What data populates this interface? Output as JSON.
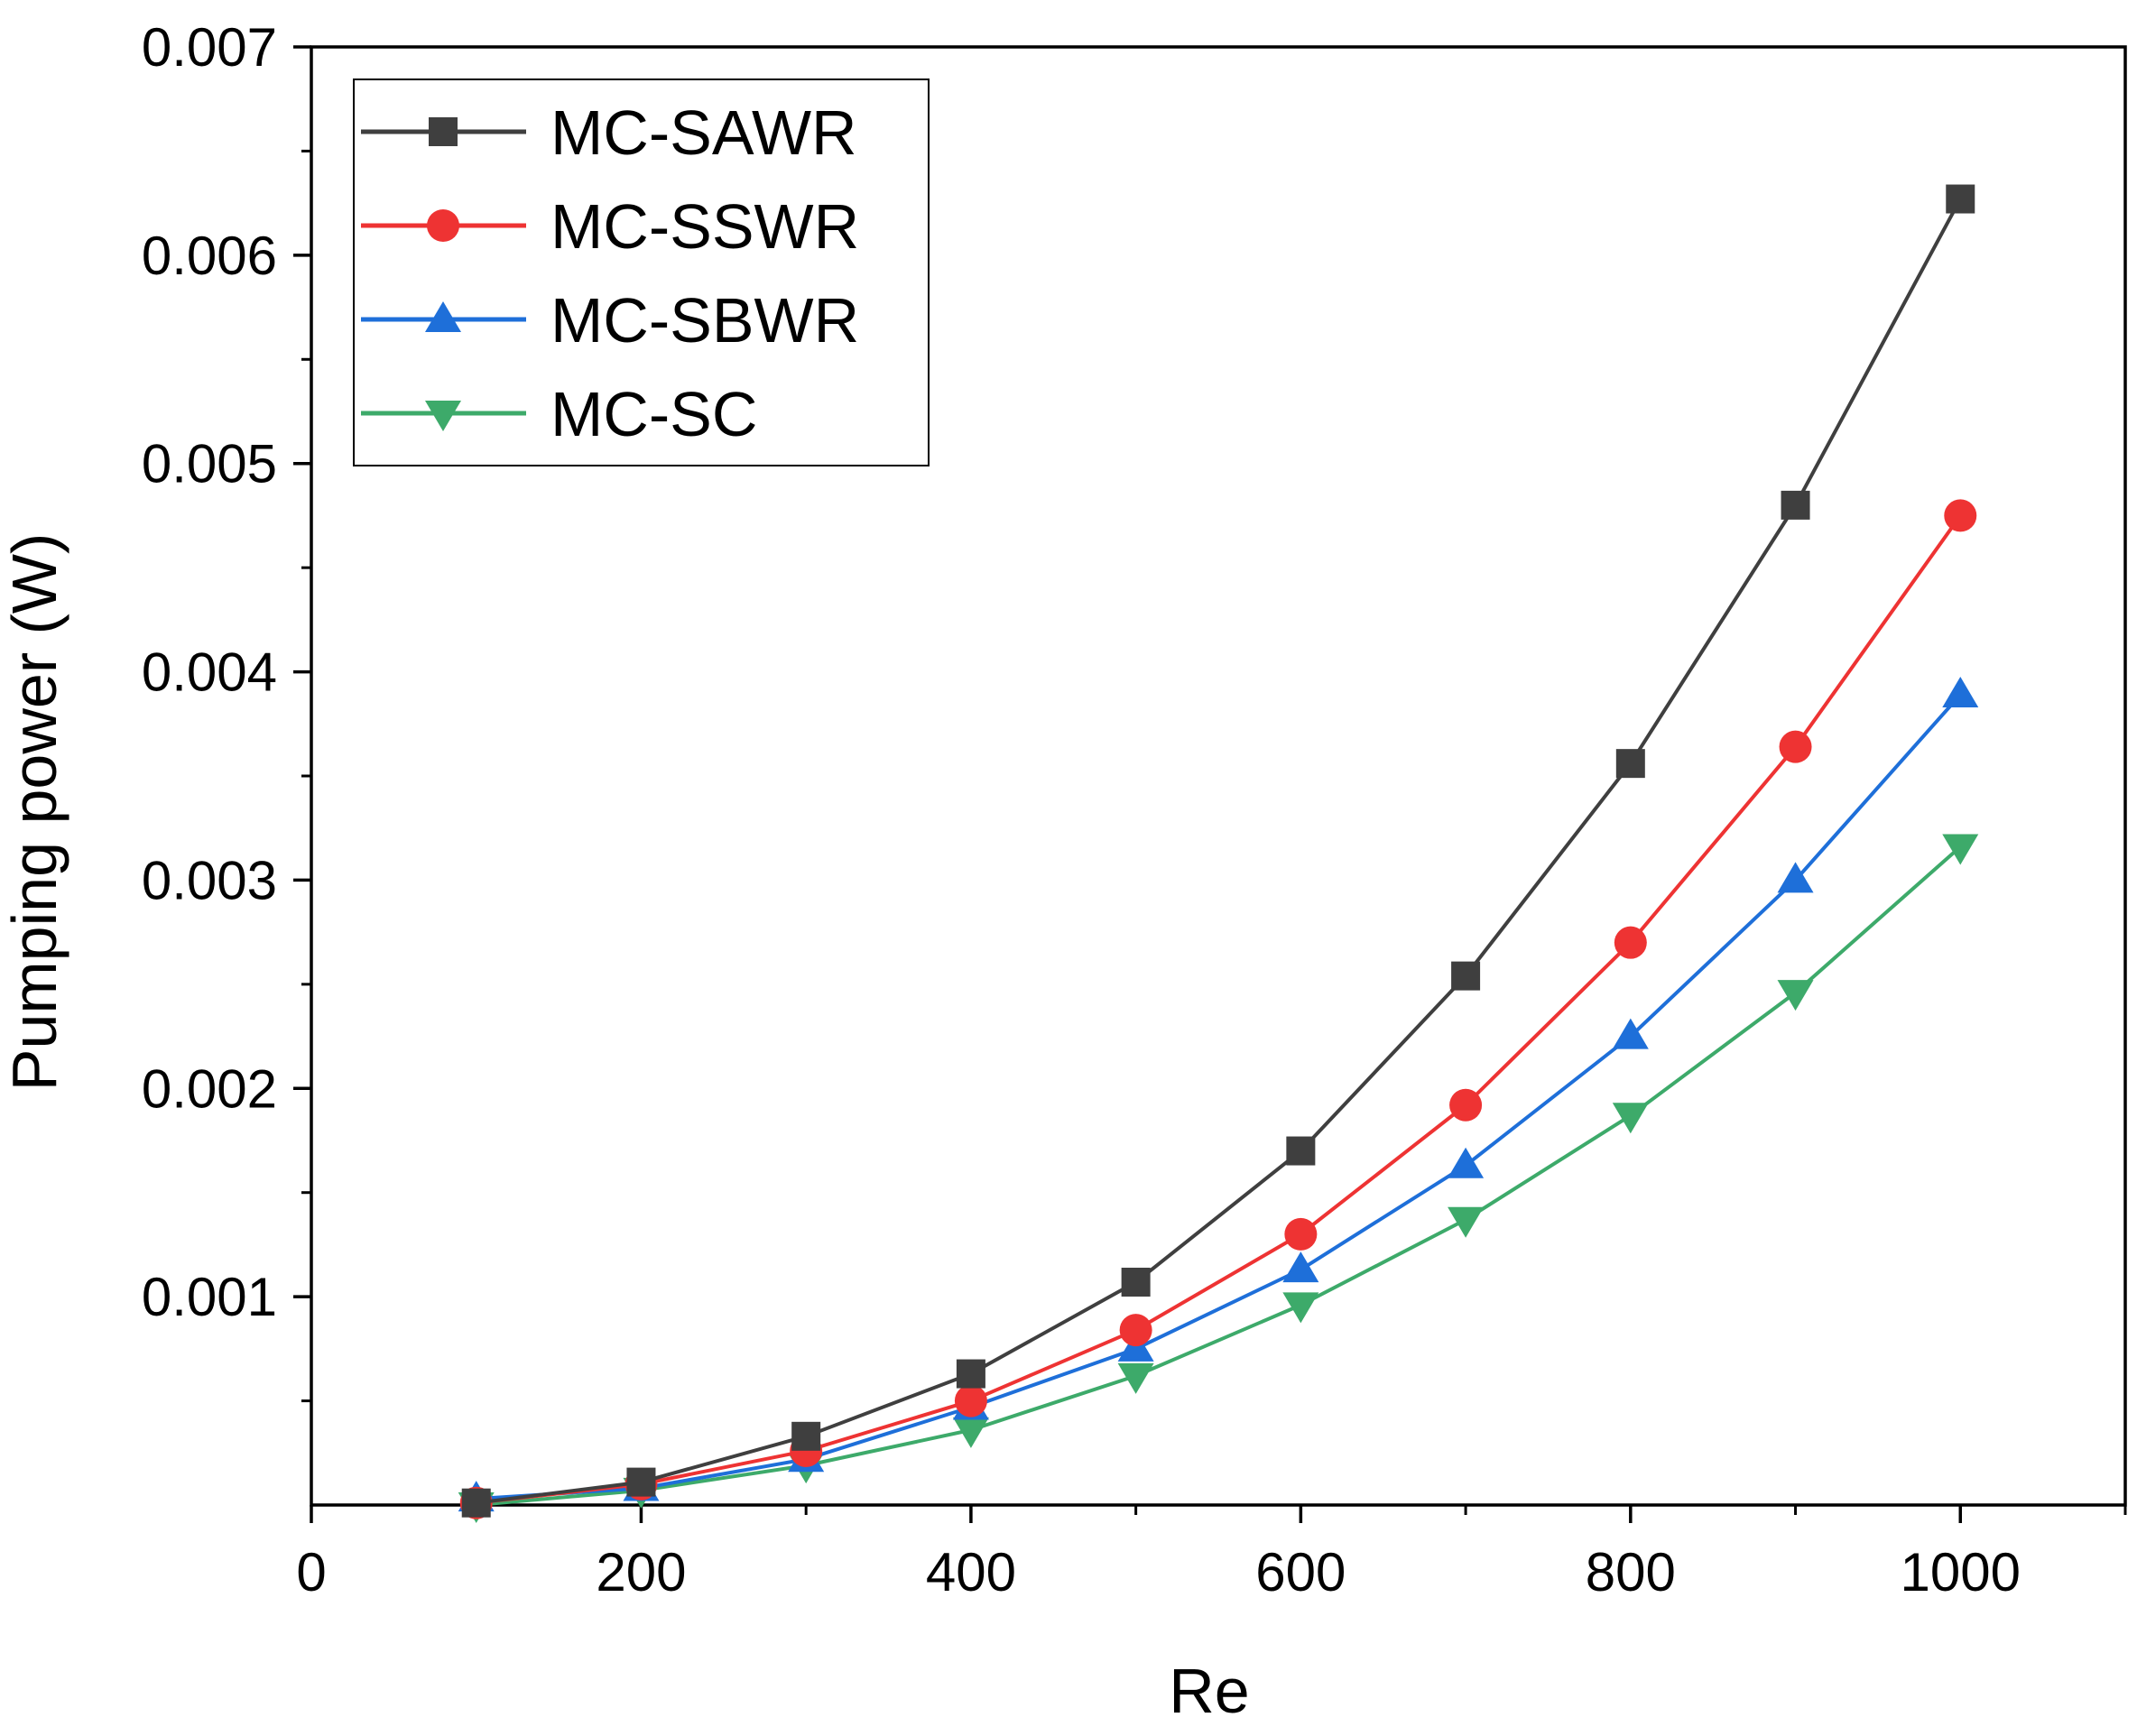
{
  "chart_data": {
    "type": "line",
    "title": "",
    "xlabel": "Re",
    "ylabel": "Pumping power (W)",
    "xlim": [
      0,
      1100
    ],
    "ylim": [
      0,
      0.007
    ],
    "x_ticks": [
      0,
      200,
      400,
      600,
      800,
      1000
    ],
    "x_tick_labels": [
      "0",
      "200",
      "400",
      "600",
      "800",
      "1000"
    ],
    "y_ticks": [
      0.001,
      0.002,
      0.003,
      0.004,
      0.005,
      0.006,
      0.007
    ],
    "y_tick_labels": [
      "0.001",
      "0.002",
      "0.003",
      "0.004",
      "0.005",
      "0.006",
      "0.007"
    ],
    "grid": false,
    "legend_position": "top-left",
    "x": [
      100,
      200,
      300,
      400,
      500,
      600,
      700,
      800,
      900,
      1000
    ],
    "series": [
      {
        "name": "MC-SAWR",
        "color": "#3f3f3f",
        "marker": "square",
        "values": [
          1e-05,
          0.00011,
          0.00033,
          0.00063,
          0.00107,
          0.0017,
          0.00254,
          0.00356,
          0.0048,
          0.00627
        ]
      },
      {
        "name": "MC-SSWR",
        "color": "#ee3333",
        "marker": "circle",
        "values": [
          1e-05,
          0.0001,
          0.00026,
          0.0005,
          0.00084,
          0.0013,
          0.00192,
          0.0027,
          0.00364,
          0.00475
        ]
      },
      {
        "name": "MC-SBWR",
        "color": "#1e6fd9",
        "marker": "triangle-up",
        "values": [
          3e-05,
          8e-05,
          0.00022,
          0.00047,
          0.00075,
          0.00113,
          0.00163,
          0.00225,
          0.003,
          0.00389
        ]
      },
      {
        "name": "MC-SC",
        "color": "#3daa6a",
        "marker": "triangle-down",
        "values": [
          0.0,
          7e-05,
          0.00019,
          0.00036,
          0.00062,
          0.00096,
          0.00137,
          0.00187,
          0.00246,
          0.00316
        ]
      }
    ]
  }
}
